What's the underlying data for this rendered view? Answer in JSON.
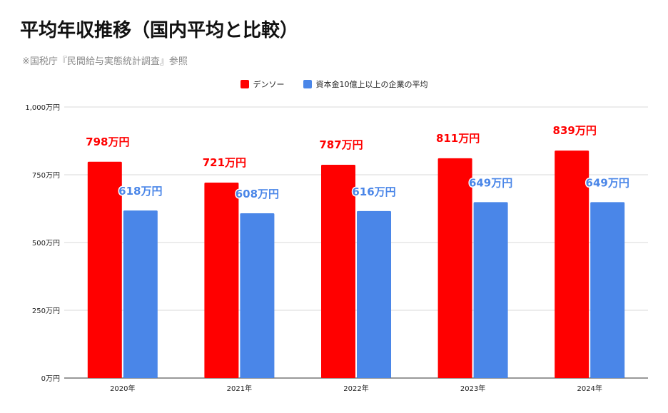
{
  "title": "平均年収推移（国内平均と比較）",
  "subtitle": "※国税庁『民間給与実態統計調査』参照",
  "colors": {
    "denso": "#ff0000",
    "average": "#4a86e8",
    "gridline": "#d9d9d9",
    "axis": "#333333"
  },
  "chart_data": {
    "type": "bar",
    "title": "平均年収推移（国内平均と比較）",
    "subtitle": "※国税庁『民間給与実態統計調査』参照",
    "categories": [
      "2020年",
      "2021年",
      "2022年",
      "2023年",
      "2024年"
    ],
    "series": [
      {
        "name": "デンソー",
        "values": [
          798,
          721,
          787,
          811,
          839
        ],
        "labels": [
          "798万円",
          "721万円",
          "787万円",
          "811万円",
          "839万円"
        ]
      },
      {
        "name": "資本金10億上以上の企業の平均",
        "values": [
          618,
          608,
          616,
          649,
          649
        ],
        "labels": [
          "618万円",
          "608万円",
          "616万円",
          "649万円",
          "649万円"
        ]
      }
    ],
    "ylim": [
      0,
      1000
    ],
    "yticks": [
      0,
      250,
      500,
      750,
      1000
    ],
    "ytick_labels": [
      "0万円",
      "250万円",
      "500万円",
      "750万円",
      "1,000万円"
    ],
    "grid": true,
    "legend_position": "top-center",
    "xlabel": "",
    "ylabel": ""
  }
}
